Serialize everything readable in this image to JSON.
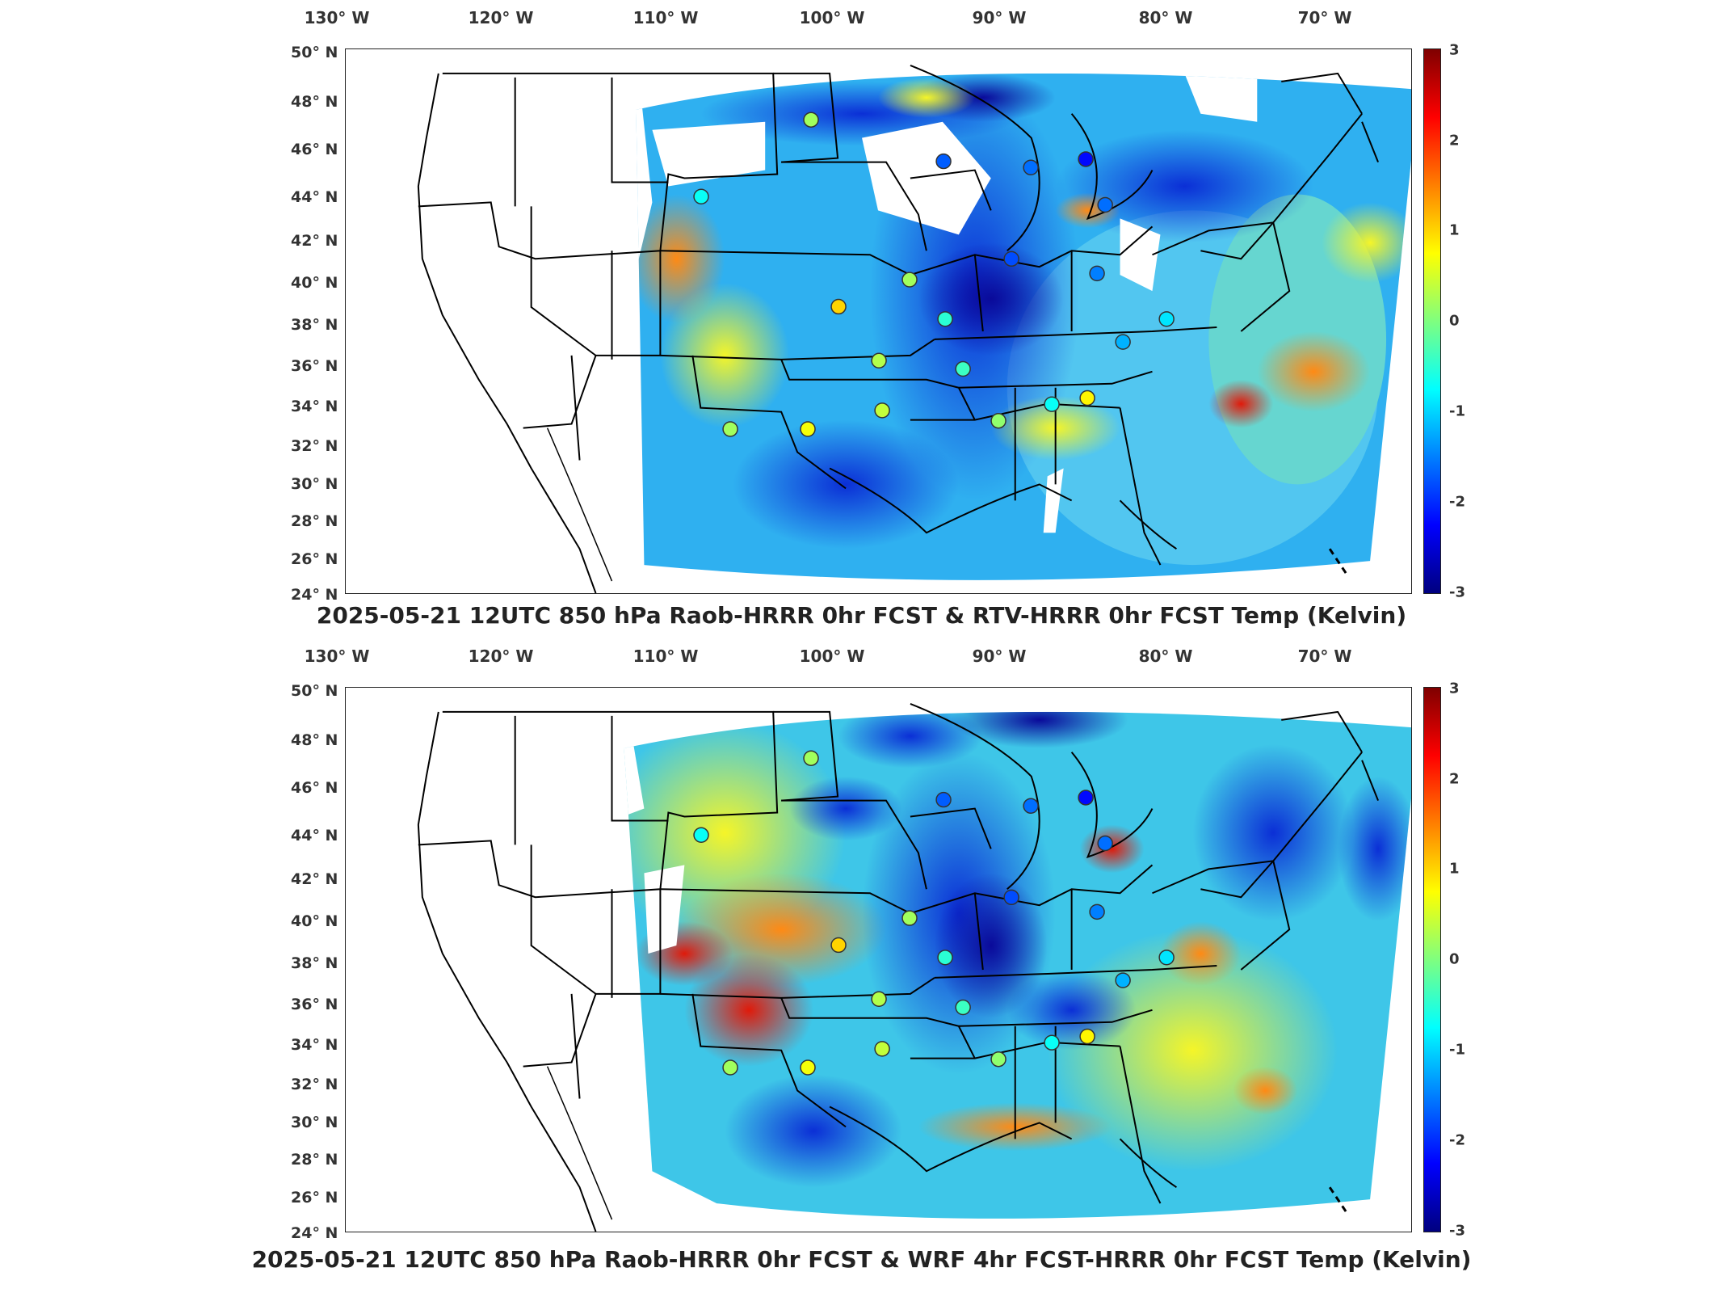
{
  "lon_ticks": [
    "130° W",
    "120° W",
    "110° W",
    "100° W",
    "90° W",
    "80° W",
    "70° W"
  ],
  "lat_ticks": [
    "50° N",
    "48° N",
    "46° N",
    "44° N",
    "42° N",
    "40° N",
    "38° N",
    "36° N",
    "34° N",
    "32° N",
    "30° N",
    "28° N",
    "26° N",
    "24° N"
  ],
  "colorbar_ticks": [
    "3",
    "2",
    "1",
    "0",
    "-1",
    "-2",
    "-3"
  ],
  "colorbar_range": [
    -3,
    3
  ],
  "colormap": "jet",
  "colors": {
    "raob_marker_outline": "#333333",
    "state_borders": "#000000",
    "colorbar_stops": [
      "#00007f",
      "#0000ff",
      "#007fff",
      "#00ffff",
      "#7fff7f",
      "#ffff00",
      "#ff7f00",
      "#ff0000",
      "#7f0000"
    ]
  },
  "panels": [
    {
      "title": "2025-05-21 12UTC 850 hPa Raob-HRRR 0hr FCST & RTV-HRRR 0hr FCST Temp (Kelvin)",
      "raob_stations": [
        {
          "lon": -101.7,
          "lat": 46.8,
          "value": 0.2
        },
        {
          "lon": -108.5,
          "lat": 43.1,
          "value": -0.7
        },
        {
          "lon": -93.5,
          "lat": 44.8,
          "value": -1.7
        },
        {
          "lon": -88.1,
          "lat": 44.5,
          "value": -1.6
        },
        {
          "lon": -84.7,
          "lat": 44.9,
          "value": -2.2
        },
        {
          "lon": -83.5,
          "lat": 42.7,
          "value": -1.6
        },
        {
          "lon": -89.3,
          "lat": 40.1,
          "value": -1.8
        },
        {
          "lon": -84.0,
          "lat": 39.4,
          "value": -1.5
        },
        {
          "lon": -95.6,
          "lat": 39.1,
          "value": 0.2
        },
        {
          "lon": -100.0,
          "lat": 37.8,
          "value": 1.0
        },
        {
          "lon": -93.4,
          "lat": 37.2,
          "value": -0.5
        },
        {
          "lon": -97.5,
          "lat": 35.2,
          "value": 0.3
        },
        {
          "lon": -92.3,
          "lat": 34.8,
          "value": -0.4
        },
        {
          "lon": -86.8,
          "lat": 33.1,
          "value": -0.7
        },
        {
          "lon": -84.6,
          "lat": 33.4,
          "value": 0.8
        },
        {
          "lon": -90.1,
          "lat": 32.3,
          "value": 0.1
        },
        {
          "lon": -97.3,
          "lat": 32.8,
          "value": 0.4
        },
        {
          "lon": -101.9,
          "lat": 31.9,
          "value": 0.7
        },
        {
          "lon": -106.7,
          "lat": 31.9,
          "value": 0.2
        },
        {
          "lon": -82.4,
          "lat": 36.1,
          "value": -1.2
        },
        {
          "lon": -79.7,
          "lat": 37.2,
          "value": -0.9
        }
      ]
    },
    {
      "title": "2025-05-21 12UTC 850 hPa Raob-HRRR 0hr FCST & WRF 4hr FCST-HRRR 0hr FCST Temp (Kelvin)",
      "raob_stations": [
        {
          "lon": -101.7,
          "lat": 46.8,
          "value": 0.2
        },
        {
          "lon": -108.5,
          "lat": 43.1,
          "value": -0.7
        },
        {
          "lon": -93.5,
          "lat": 44.8,
          "value": -1.7
        },
        {
          "lon": -88.1,
          "lat": 44.5,
          "value": -1.6
        },
        {
          "lon": -84.7,
          "lat": 44.9,
          "value": -2.2
        },
        {
          "lon": -83.5,
          "lat": 42.7,
          "value": -1.6
        },
        {
          "lon": -89.3,
          "lat": 40.1,
          "value": -1.8
        },
        {
          "lon": -84.0,
          "lat": 39.4,
          "value": -1.5
        },
        {
          "lon": -95.6,
          "lat": 39.1,
          "value": 0.2
        },
        {
          "lon": -100.0,
          "lat": 37.8,
          "value": 1.0
        },
        {
          "lon": -93.4,
          "lat": 37.2,
          "value": -0.5
        },
        {
          "lon": -97.5,
          "lat": 35.2,
          "value": 0.3
        },
        {
          "lon": -92.3,
          "lat": 34.8,
          "value": -0.4
        },
        {
          "lon": -86.8,
          "lat": 33.1,
          "value": -0.7
        },
        {
          "lon": -84.6,
          "lat": 33.4,
          "value": 0.8
        },
        {
          "lon": -90.1,
          "lat": 32.3,
          "value": 0.1
        },
        {
          "lon": -97.3,
          "lat": 32.8,
          "value": 0.4
        },
        {
          "lon": -101.9,
          "lat": 31.9,
          "value": 0.7
        },
        {
          "lon": -106.7,
          "lat": 31.9,
          "value": 0.2
        },
        {
          "lon": -82.4,
          "lat": 36.1,
          "value": -1.2
        },
        {
          "lon": -79.7,
          "lat": 37.2,
          "value": -0.9
        }
      ]
    }
  ]
}
